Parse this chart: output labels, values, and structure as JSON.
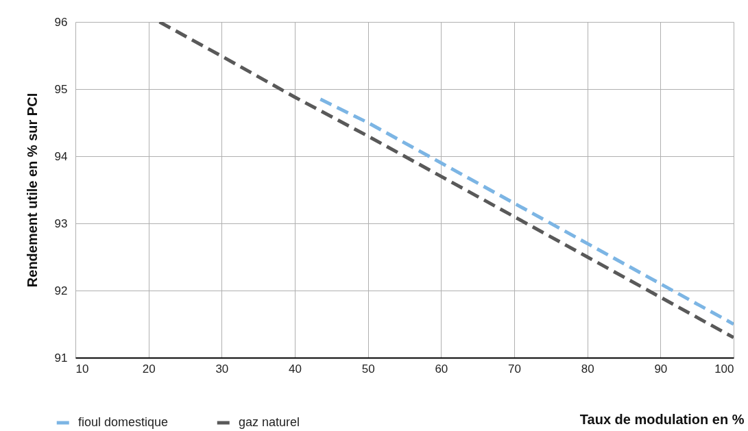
{
  "chart_data": {
    "type": "line",
    "xlabel": "Taux de modulation en %",
    "ylabel": "Rendement utile en % sur PCI",
    "series": [
      {
        "name": "fioul domestique",
        "color": "#7cb5e4",
        "x": [
          43.5,
          50,
          60,
          70,
          80,
          90,
          100
        ],
        "values": [
          94.85,
          94.5,
          93.9,
          93.3,
          92.7,
          92.1,
          91.5
        ]
      },
      {
        "name": "gaz naturel",
        "color": "#595959",
        "x": [
          21.5,
          30,
          40,
          50,
          60,
          70,
          80,
          90,
          100
        ],
        "values": [
          96,
          95.49,
          94.88,
          94.3,
          93.7,
          93.1,
          92.5,
          91.9,
          91.3
        ]
      }
    ],
    "xlim": [
      10,
      100
    ],
    "xticks": [
      10,
      20,
      30,
      40,
      50,
      60,
      70,
      80,
      90,
      100
    ],
    "ylim": [
      91,
      96
    ],
    "yticks": [
      91,
      92,
      93,
      94,
      95,
      96
    ],
    "grid": true,
    "legend": "bottom left",
    "line_style": "dashed",
    "marker": "none"
  }
}
